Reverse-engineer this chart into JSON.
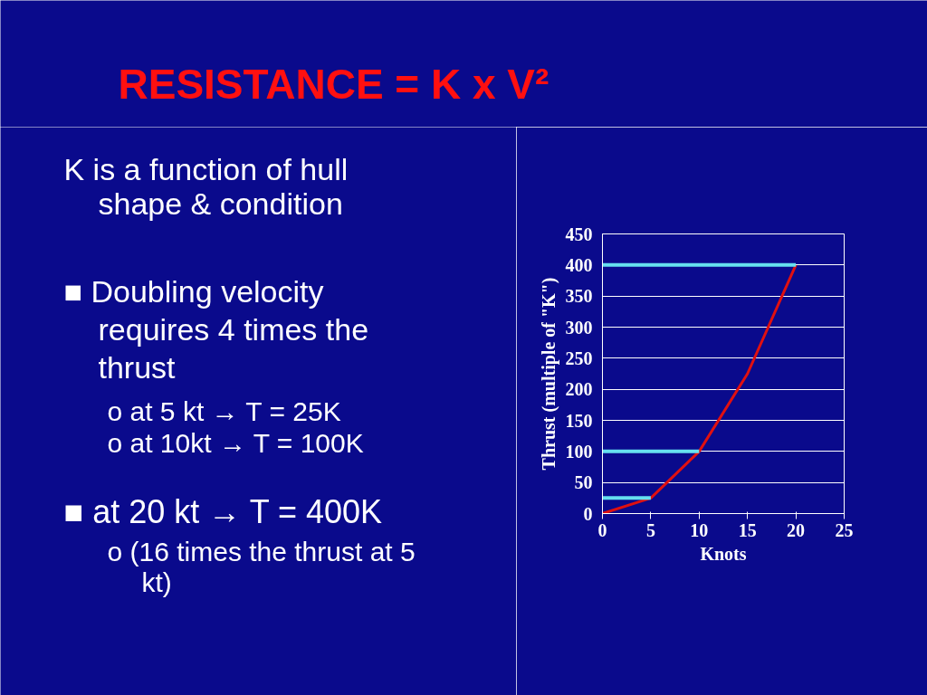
{
  "chart_data": {
    "type": "line",
    "title": "RESISTANCE = K x V²",
    "xlabel": "Knots",
    "ylabel": "Thrust (multiple of \"K\")",
    "x": [
      0,
      5,
      10,
      15,
      20
    ],
    "series": [
      {
        "name": null,
        "color": "#e01010",
        "values": [
          0,
          25,
          100,
          225,
          400
        ]
      },
      {
        "color": "#66e0f0",
        "x": [
          0,
          5
        ],
        "values": [
          25,
          25
        ]
      },
      {
        "color": "#66e0f0",
        "x": [
          0,
          10
        ],
        "values": [
          100,
          100
        ]
      },
      {
        "color": "#66e0f0",
        "x": [
          0,
          20
        ],
        "values": [
          400,
          400
        ]
      }
    ],
    "xlim": [
      0,
      25
    ],
    "xticks": [
      0,
      5,
      10,
      15,
      20,
      25
    ],
    "ylim": [
      0,
      450
    ],
    "yticks": [
      0,
      50,
      100,
      150,
      200,
      250,
      300,
      350,
      400,
      450
    ],
    "grid": "y",
    "marker": "none",
    "line_style": "solid",
    "annotations": [
      "K is a function of hull shape & condition",
      "■ Doubling velocity requires 4 times the thrust",
      "o at 5 kt → T = 25K",
      "o at 10kt → T = 100K",
      "■ at 20 kt → T = 400K",
      "o (16 times the thrust at 5 kt)"
    ]
  }
}
